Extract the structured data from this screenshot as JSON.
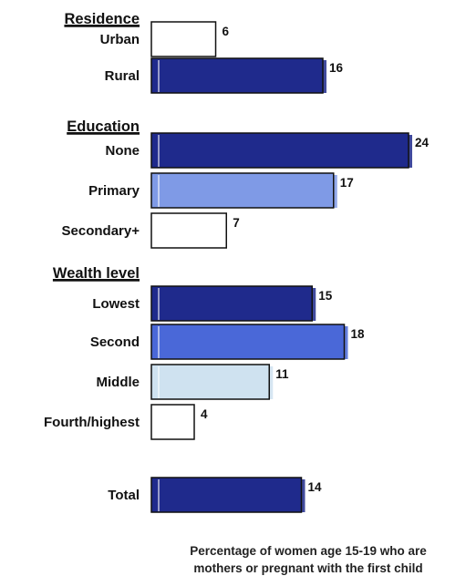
{
  "chart_data": {
    "type": "bar",
    "orientation": "horizontal",
    "xlabel": "Percentage of women age 15-19 who are mothers or pregnant with the first child",
    "xlabel_lines": [
      "Percentage of women age 15-19 who are",
      "mothers or pregnant with the first child"
    ],
    "xlim": [
      0,
      25
    ],
    "grid": false,
    "groups": [
      {
        "header": "Residence",
        "bars": [
          {
            "category": "Urban",
            "value": 6,
            "label": "6",
            "color": "#ffffff"
          },
          {
            "category": "Rural",
            "value": 16,
            "label": "16",
            "color": "#1f2a8c"
          }
        ]
      },
      {
        "header": "Education",
        "bars": [
          {
            "category": "None",
            "value": 24,
            "label": "24",
            "color": "#1f2a8c"
          },
          {
            "category": "Primary",
            "value": 17,
            "label": "17",
            "color": "#7f9ae6"
          },
          {
            "category": "Secondary+",
            "value": 7,
            "label": "7",
            "color": "#ffffff"
          }
        ]
      },
      {
        "header": "Wealth level",
        "bars": [
          {
            "category": "Lowest",
            "value": 15,
            "label": "15",
            "color": "#1f2a8c"
          },
          {
            "category": "Second",
            "value": 18,
            "label": "18",
            "color": "#4a68d8"
          },
          {
            "category": "Middle",
            "value": 11,
            "label": "11",
            "color": "#cfe2f0"
          },
          {
            "category": "Fourth/highest",
            "value": 4,
            "label": "4",
            "color": "#ffffff"
          }
        ]
      },
      {
        "header": "",
        "bars": [
          {
            "category": "Total",
            "value": 14,
            "label": "14",
            "color": "#1f2a8c"
          }
        ]
      }
    ]
  }
}
